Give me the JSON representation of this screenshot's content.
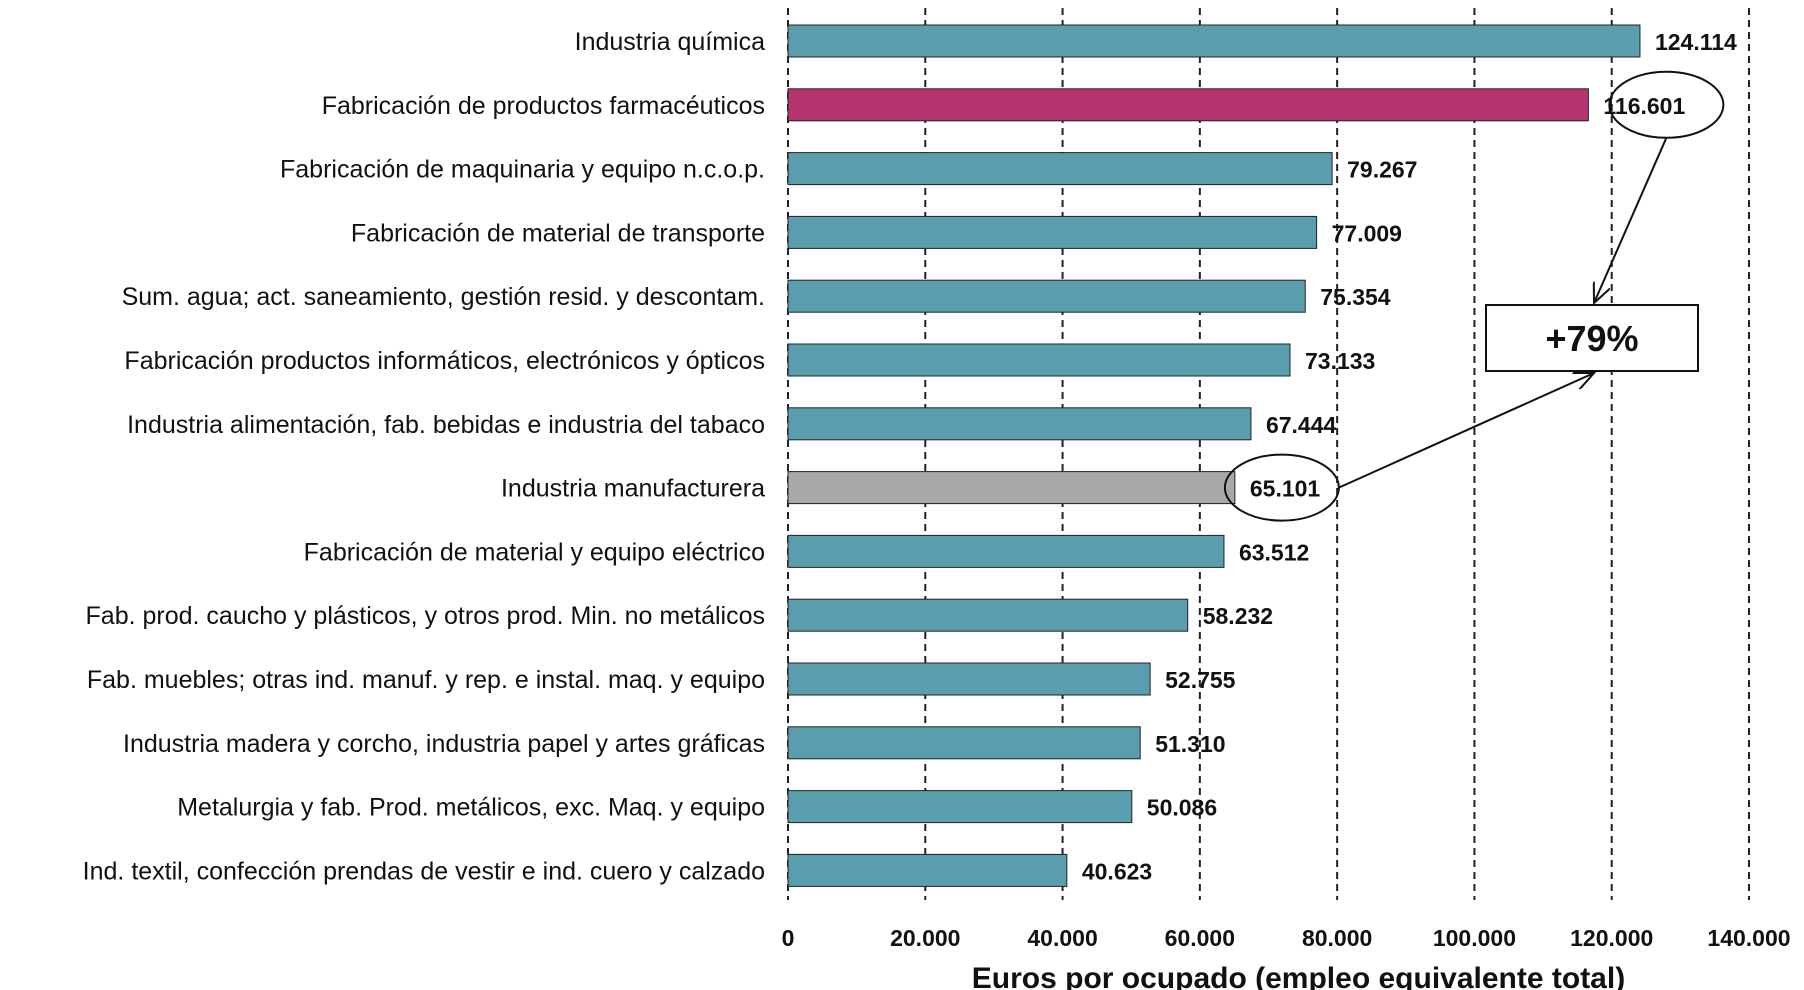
{
  "chart_data": {
    "type": "bar",
    "orientation": "horizontal",
    "categories": [
      "Industria química",
      "Fabricación de productos farmacéuticos",
      "Fabricación de maquinaria y equipo n.c.o.p.",
      "Fabricación de material de transporte",
      "Sum. agua; act. saneamiento, gestión resid. y descontam.",
      "Fabricación productos informáticos, electrónicos y ópticos",
      "Industria alimentación, fab. bebidas e industria del tabaco",
      "Industria manufacturera",
      "Fabricación de material y equipo eléctrico",
      "Fab. prod. caucho y plásticos, y otros prod. Min. no metálicos",
      "Fab. muebles; otras ind. manuf. y rep. e instal. maq. y equipo",
      "Industria madera y corcho, industria papel y artes gráficas",
      "Metalurgia y fab. Prod. metálicos, exc. Maq. y equipo",
      "Ind. textil, confección prendas de vestir e ind. cuero y calzado"
    ],
    "values": [
      124114,
      116601,
      79267,
      77009,
      75354,
      73133,
      67444,
      65101,
      63512,
      58232,
      52755,
      51310,
      50086,
      40623
    ],
    "value_labels": [
      "124.114",
      "116.601",
      "79.267",
      "77.009",
      "75.354",
      "73.133",
      "67.444",
      "65.101",
      "63.512",
      "58.232",
      "52.755",
      "51.310",
      "50.086",
      "40.623"
    ],
    "bar_colors": [
      "#5a9daf",
      "#b5336f",
      "#5a9daf",
      "#5a9daf",
      "#5a9daf",
      "#5a9daf",
      "#5a9daf",
      "#a8a8a8",
      "#5a9daf",
      "#5a9daf",
      "#5a9daf",
      "#5a9daf",
      "#5a9daf",
      "#5a9daf"
    ],
    "xlim": [
      0,
      140000
    ],
    "xticks": [
      0,
      20000,
      40000,
      60000,
      80000,
      100000,
      120000,
      140000
    ],
    "xtick_labels": [
      "0",
      "20.000",
      "40.000",
      "60.000",
      "80.000",
      "100.000",
      "120.000",
      "140.000"
    ],
    "xlabel": "Euros por ocupado (empleo equivalente total)",
    "title": "",
    "grid": "vertical dashed",
    "annotation": {
      "text": "+79%",
      "from_category": "Fabricación de productos farmacéuticos",
      "to_category": "Industria manufacturera"
    }
  },
  "colors": {
    "default_bar": "#5a9daf",
    "highlight_bar": "#b5336f",
    "reference_bar": "#a8a8a8"
  }
}
